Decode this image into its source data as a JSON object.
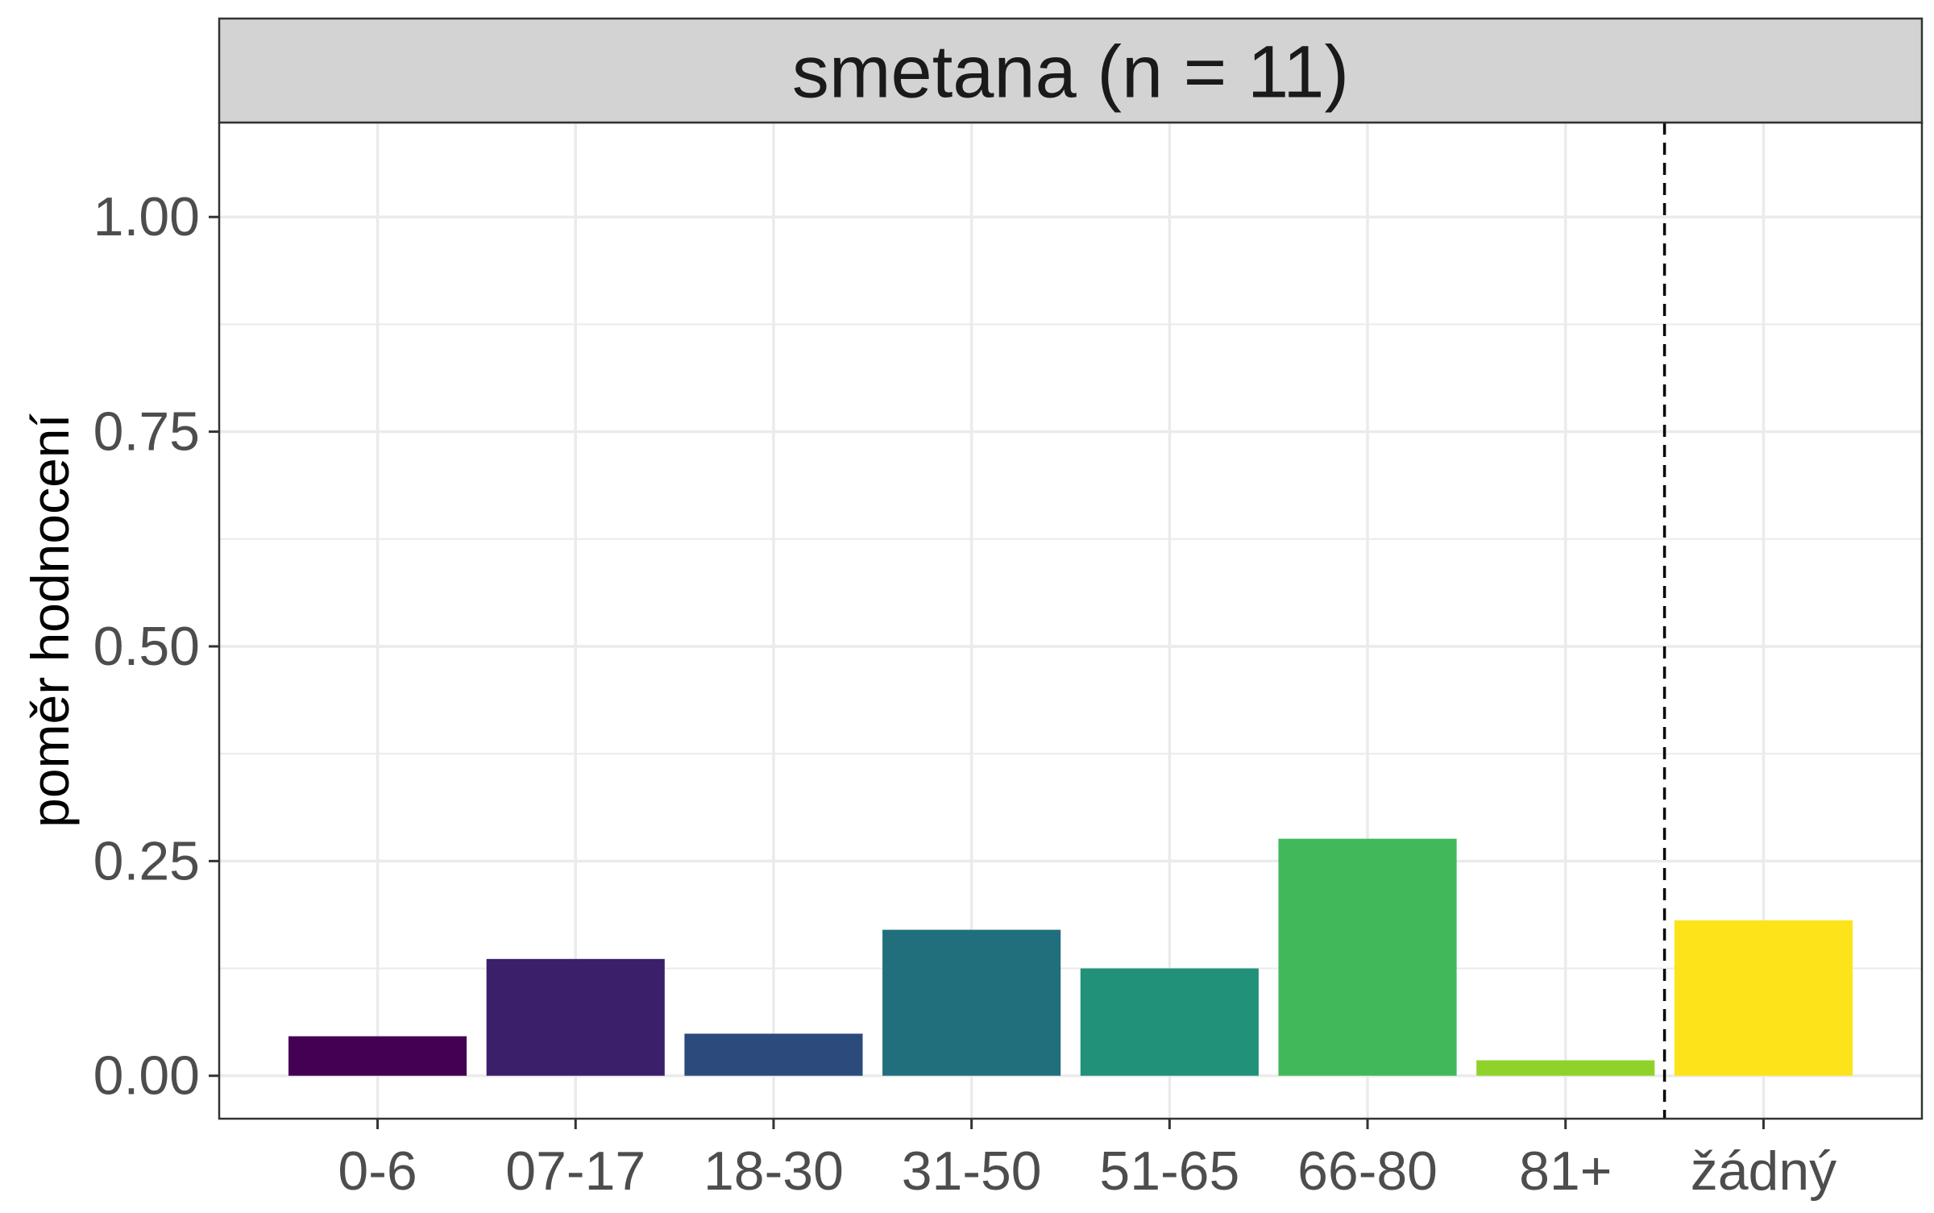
{
  "chart_data": {
    "type": "bar",
    "facet_title": "smetana (n = 11)",
    "ylabel": "poměr hodnocení",
    "xlabel": "",
    "categories": [
      "0-6",
      "07-17",
      "18-30",
      "31-50",
      "51-65",
      "66-80",
      "81+",
      "žádný"
    ],
    "values": [
      0.046,
      0.136,
      0.049,
      0.17,
      0.125,
      0.276,
      0.018,
      0.181
    ],
    "colors": [
      "#440154",
      "#3b1f6b",
      "#2c4a7c",
      "#216f7d",
      "#21917a",
      "#41b95a",
      "#8fd32a",
      "#fde31a"
    ],
    "ylim": [
      -0.05,
      1.11
    ],
    "yticks": [
      0.0,
      0.25,
      0.5,
      0.75,
      1.0
    ],
    "ytick_labels": [
      "0.00",
      "0.25",
      "0.50",
      "0.75",
      "1.00"
    ],
    "separator_after_category": "81+",
    "separator_style": "dashed",
    "grid": true,
    "theme": {
      "strip_fill": "#d3d3d3",
      "panel_border": "#333333",
      "grid_color": "#ebebeb",
      "background": "#ffffff"
    }
  }
}
